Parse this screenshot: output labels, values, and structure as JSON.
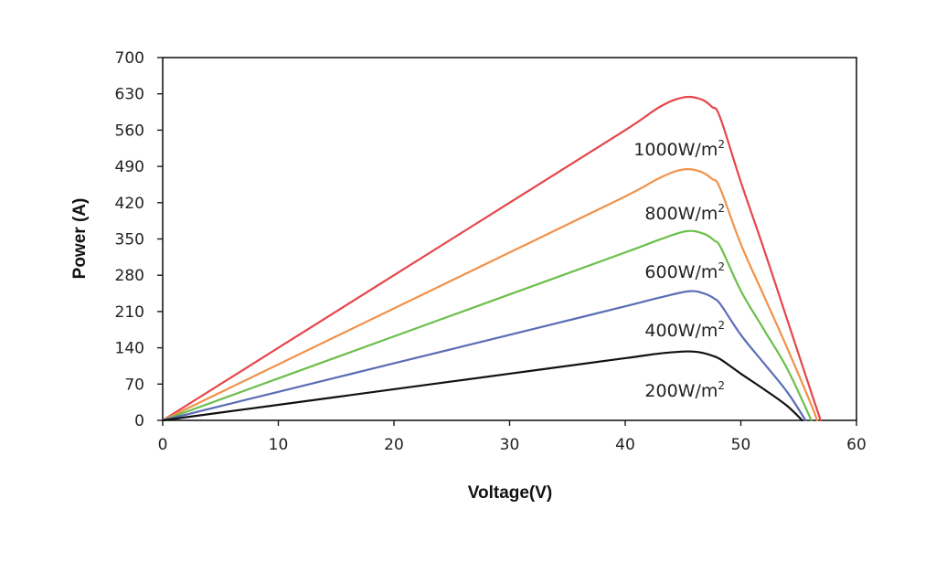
{
  "chart_data": {
    "type": "line",
    "title": "",
    "xlabel": "Voltage(V)",
    "ylabel": "Power (A)",
    "xlim": [
      0,
      60
    ],
    "ylim": [
      0,
      700
    ],
    "x_ticks": [
      0,
      10,
      20,
      30,
      40,
      50,
      60
    ],
    "y_ticks": [
      0,
      70,
      140,
      210,
      280,
      350,
      420,
      490,
      560,
      630,
      700
    ],
    "grid": false,
    "legend": "none",
    "series": [
      {
        "name": "1000W/m2",
        "label_text": "1000W/m",
        "label_sup": "2",
        "color": "#e5464a",
        "x": [
          0,
          10,
          20,
          30,
          40,
          43,
          45,
          46.5,
          47.5,
          48.2,
          50,
          52,
          54,
          56,
          56.9
        ],
        "y": [
          0,
          140,
          280,
          420,
          560,
          605,
          623,
          620,
          605,
          585,
          460,
          330,
          195,
          60,
          0
        ]
      },
      {
        "name": "800W/m2",
        "label_text": "800W/m",
        "label_sup": "2",
        "color": "#f0924a",
        "x": [
          0,
          10,
          20,
          30,
          40,
          43,
          45,
          46.5,
          47.5,
          48.2,
          50,
          52,
          54,
          56,
          56.6
        ],
        "y": [
          0,
          108,
          216,
          324,
          432,
          468,
          484,
          480,
          466,
          448,
          340,
          240,
          140,
          35,
          0
        ]
      },
      {
        "name": "600W/m2",
        "label_text": "600W/m",
        "label_sup": "2",
        "color": "#6bbf4b",
        "x": [
          0,
          10,
          20,
          30,
          40,
          43,
          45.3,
          46.8,
          47.7,
          48.3,
          50,
          52,
          54,
          56.1
        ],
        "y": [
          0,
          81,
          162,
          243,
          324,
          349,
          365,
          360,
          347,
          332,
          250,
          175,
          100,
          0
        ]
      },
      {
        "name": "400W/m2",
        "label_text": "400W/m",
        "label_sup": "2",
        "color": "#5b6db6",
        "x": [
          0,
          10,
          20,
          30,
          40,
          43,
          45.5,
          46.8,
          47.7,
          48.3,
          50,
          52,
          54,
          55.6
        ],
        "y": [
          0,
          55,
          110,
          165,
          220,
          237,
          249,
          245,
          235,
          222,
          165,
          110,
          55,
          0
        ]
      },
      {
        "name": "200W/m2",
        "label_text": "200W/m",
        "label_sup": "2",
        "color": "#111111",
        "x": [
          0,
          10,
          20,
          30,
          40,
          43,
          45.3,
          46.5,
          47.5,
          48.3,
          50,
          52,
          54,
          55.3
        ],
        "y": [
          0,
          30,
          60,
          90,
          120,
          129,
          133,
          131,
          125,
          117,
          90,
          60,
          28,
          0
        ]
      }
    ]
  }
}
